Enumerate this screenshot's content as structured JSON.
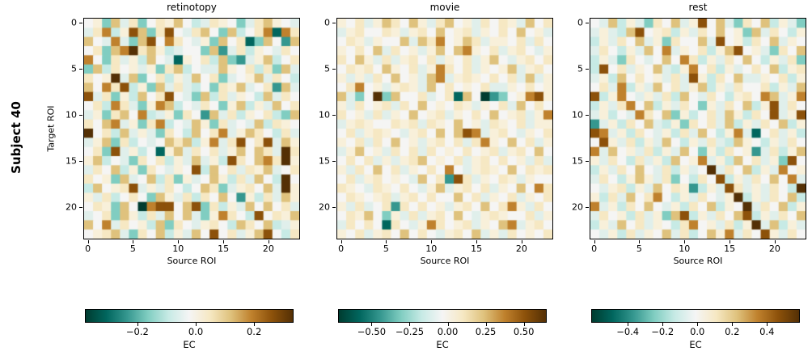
{
  "figure": {
    "row_label": "Subject 40",
    "ylabel": "Target ROI"
  },
  "encoding": {
    "note": "matrix_levels strings: one char per cell, base-13 level 0-12 mapped onto BrBG_r colormap; level 6 = EC of 0 (white), 0 = strongest negative (dark teal), 12 = strongest positive (dark brown)",
    "charset": "0123456789abc",
    "cell_palette": [
      "#003c30",
      "#01665e",
      "#35978f",
      "#80cdc1",
      "#c7eae5",
      "#e0efeb",
      "#f5f5f4",
      "#f8f0da",
      "#f6e8c3",
      "#dfc27d",
      "#bf812d",
      "#8c510a",
      "#543005"
    ],
    "cbar_stops": [
      "#003c30",
      "#01665e",
      "#35978f",
      "#80cdc1",
      "#c7eae5",
      "#f5f5f5",
      "#f6e8c3",
      "#dfc27d",
      "#bf812d",
      "#8c510a",
      "#543005"
    ]
  },
  "chart_data": [
    {
      "type": "heatmap",
      "title": "retinotopy",
      "xlabel": "Source ROI",
      "n_rows": 24,
      "n_cols": 24,
      "x_ticks": [
        0,
        5,
        10,
        15,
        20
      ],
      "y_ticks": [
        0,
        5,
        10,
        15,
        20
      ],
      "colorbar": {
        "label": "EC",
        "vmin": -0.38,
        "vmax": 0.33,
        "ticks": [
          -0.2,
          0.0,
          0.2
        ],
        "tick_labels": [
          "−0.2",
          "0.0",
          "0.2"
        ]
      },
      "matrix_levels": [
        "673958368796458763589765",
        "58a47b938b6589639468a1a8",
        "965a539b6a86573968139629",
        "6839ac897456639258476586",
        "a63857496517684932579468",
        "394867573894655976848395",
        "867c59368475968356795864",
        "96a8b4739585463879568295",
        "b58374968b65394857649586",
        "684a8537a946586379475968",
        "573896a45738629584768439",
        "869a5738a465973856594876",
        "c68495753864968a57986485",
        "57938465698947a58b68b597",
        "683b574617958685796985c8",
        "7946538684759574b869a8c7",
        "586947386576b49685879568",
        "8673956948375697485964c6",
        "49678b5758646983578695c7",
        "758468639758486962748597",
        "6873960abb69b38475969685",
        "568397485969537a864b6879",
        "96a586749386578649869457",
        "67895386947596b68579b648"
      ]
    },
    {
      "type": "heatmap",
      "title": "movie",
      "xlabel": "Source ROI",
      "n_rows": 24,
      "n_cols": 24,
      "x_ticks": [
        0,
        5,
        10,
        15,
        20
      ],
      "y_ticks": [
        0,
        5,
        10,
        15,
        20
      ],
      "colorbar": {
        "label": "EC",
        "vmin": -0.72,
        "vmax": 0.64,
        "ticks": [
          -0.5,
          -0.25,
          0.0,
          0.25,
          0.5
        ],
        "tick_labels": [
          "−0.50",
          "−0.25",
          "0.00",
          "0.25",
          "0.50"
        ]
      },
      "matrix_levels": [
        "768579869758967586875968",
        "578668757869678576869675",
        "68757669598a679857768586",
        "76869586757969a768578657",
        "869758578685768579657868",
        "68786976857a868576795786",
        "75758696759a578768685957",
        "68a675787596867685576867",
        "9536c3966856819602367ab7",
        "758678586967687576859686",
        "86758576967857686967857a",
        "578766878587696758768577",
        "68578765786969ba57865768",
        "7685869675786858a7696857",
        "579675868586768678578696",
        "686857578967685786867585",
        "758696857686a65787696878",
        "6857867659682b8576875766",
        "8765876865795786857696a8",
        "687678578686696857685768",
        "7585682868675786968a7586",
        "687963758578696578766857",
        "5868618657a86785769a5786",
        "768578696865786957586768"
      ]
    },
    {
      "type": "heatmap",
      "title": "rest",
      "xlabel": "Source ROI",
      "n_rows": 24,
      "n_cols": 24,
      "x_ticks": [
        0,
        5,
        10,
        15,
        20
      ],
      "y_ticks": [
        0,
        5,
        10,
        15,
        20
      ],
      "colorbar": {
        "label": "EC",
        "vmin": -0.61,
        "vmax": 0.58,
        "ticks": [
          -0.4,
          -0.2,
          0.0,
          0.2,
          0.4
        ],
        "tick_labels": [
          "−0.4",
          "−0.2",
          "0.0",
          "0.2",
          "0.4"
        ]
      },
      "matrix_levels": [
        "659475386957b69538694753",
        "57549b678475869673958647",
        "47586957386695b674869576",
        "58647596a5768479b6753869",
        "4753865696a8475869647583",
        "4b685769547a684756869478",
        "57496867585b748695576847",
        "685a47596857947586684759",
        "b47a657584965864786a957a",
        "4758a694758637586947b586",
        "57465a86937468597486b57b",
        "257486954738685947586947",
        "ba57486574859647a5168574",
        "6b7584759647585497647586",
        "a59675847596374867258479",
        "758648574967a574968573b6",
        "4758696584756c5869475a67",
        "58647975836486b4758696a5",
        "657847596872475b8575864c",
        "7485968a64758657c4758694",
        "a5748696574869476c586947",
        "5867485739b475869b475869",
        "47596857648a675847c59475",
        "657485769584697a586b7586"
      ]
    }
  ]
}
